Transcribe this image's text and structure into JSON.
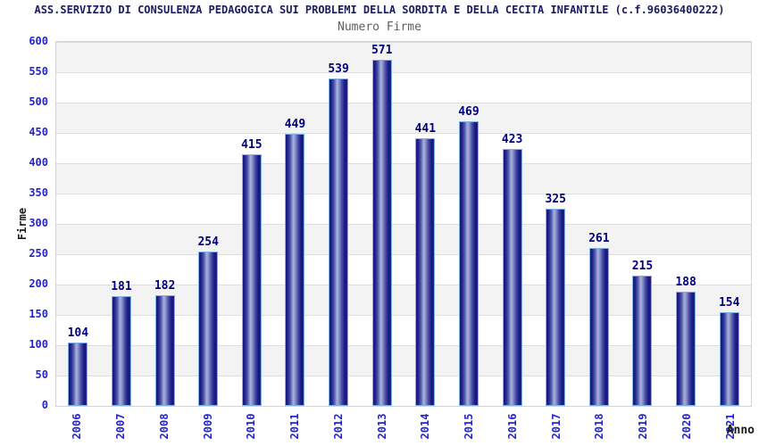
{
  "header": {
    "title": "ASS.SERVIZIO DI CONSULENZA PEDAGOGICA SUI PROBLEMI DELLA SORDITA E DELLA CECITA INFANTILE (c.f.96036400222)",
    "subtitle": "Numero Firme"
  },
  "axes": {
    "y_label": "Firme",
    "x_label": "Anno",
    "y_ticks": [
      600,
      550,
      500,
      450,
      400,
      350,
      300,
      250,
      200,
      150,
      100,
      50,
      0
    ]
  },
  "chart_data": {
    "type": "bar",
    "title": "Numero Firme",
    "xlabel": "Anno",
    "ylabel": "Firme",
    "ylim": [
      0,
      600
    ],
    "y_tick_step": 50,
    "grid": true,
    "legend": "none",
    "categories": [
      "2006",
      "2007",
      "2008",
      "2009",
      "2010",
      "2011",
      "2012",
      "2013",
      "2014",
      "2015",
      "2016",
      "2017",
      "2018",
      "2019",
      "2020",
      "2021"
    ],
    "values": [
      104,
      181,
      182,
      254,
      415,
      449,
      539,
      571,
      441,
      469,
      423,
      325,
      261,
      215,
      188,
      154
    ]
  },
  "colors": {
    "title_text": "#1b1b60",
    "subtitle_text": "#606060",
    "axis_tick_text": "#2424cc",
    "value_label_text": "#00007f",
    "bar_dark": "#17177e",
    "bar_highlight": "#aab2dc",
    "bar_border": "#7db0e6",
    "band_gray": "#f3f3f3",
    "gridline": "#dedede",
    "plot_border": "#d3d3d3"
  }
}
